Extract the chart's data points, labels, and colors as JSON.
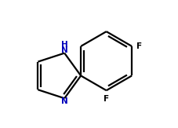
{
  "bg_color": "#ffffff",
  "bond_color": "#000000",
  "N_color": "#0000bb",
  "F_color": "#000000",
  "line_width": 1.6,
  "figsize": [
    2.27,
    1.63
  ],
  "dpi": 100,
  "xlim": [
    0.0,
    1.0
  ],
  "ylim": [
    0.0,
    1.0
  ]
}
